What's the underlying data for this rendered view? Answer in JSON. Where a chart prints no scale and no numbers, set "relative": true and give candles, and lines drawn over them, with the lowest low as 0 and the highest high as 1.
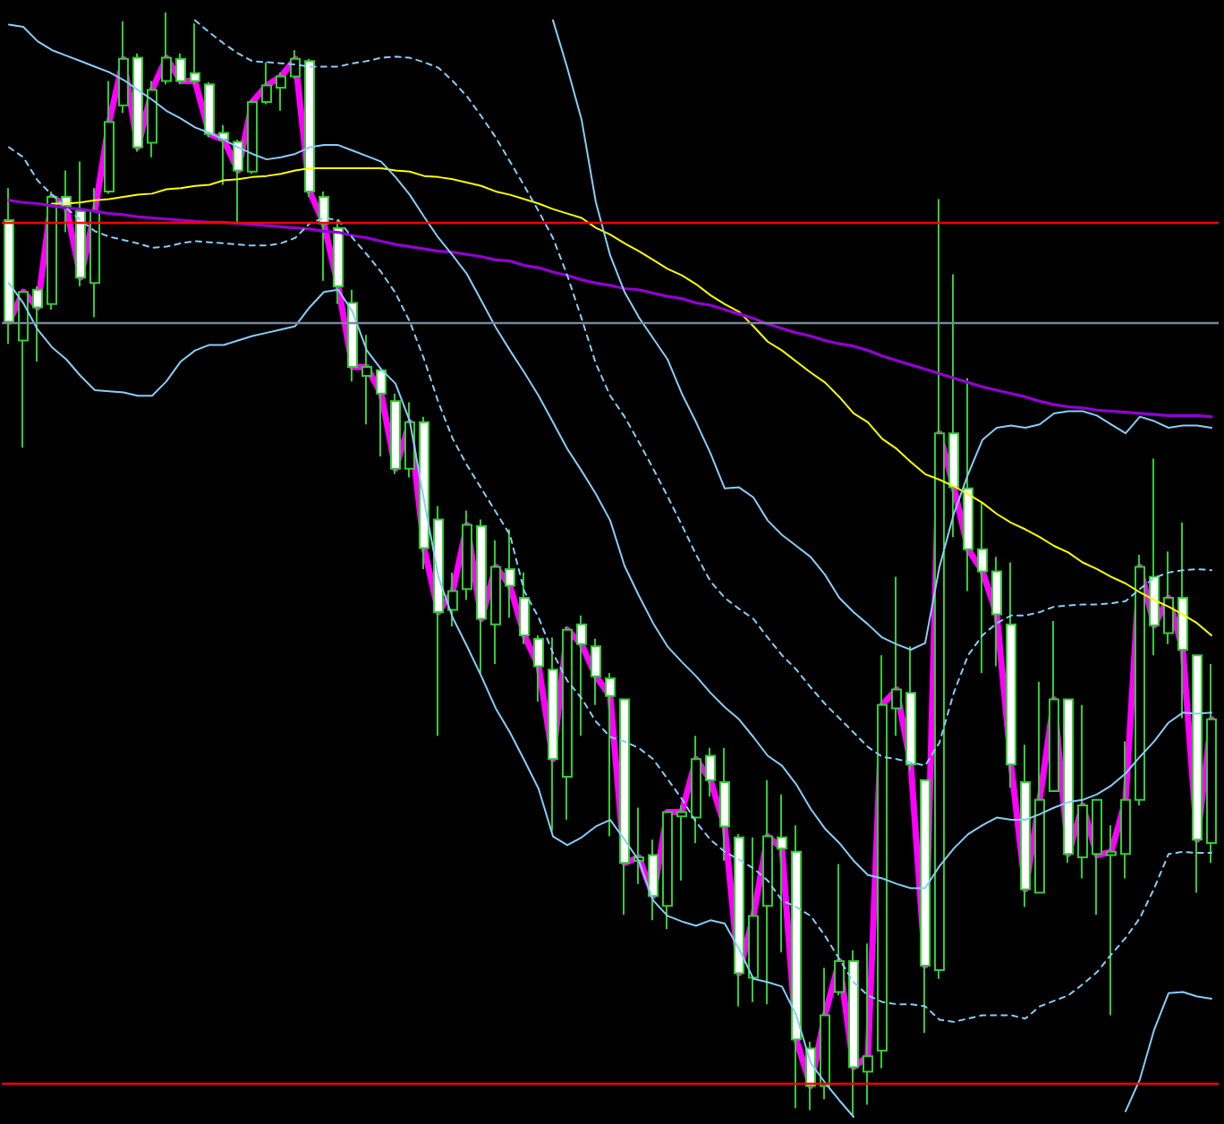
{
  "chart_data": {
    "type": "candlestick",
    "relative": true,
    "tick_labels": false,
    "grid": false,
    "marker": "none",
    "categories": [
      null,
      null,
      null,
      null,
      null,
      null,
      null,
      null,
      null,
      null,
      null,
      null,
      null,
      null,
      null,
      null,
      null,
      null,
      null,
      null,
      null,
      null,
      null,
      null,
      null,
      null,
      null,
      null,
      null,
      null,
      null,
      null,
      null,
      null,
      null,
      null,
      null,
      null,
      null,
      null,
      null,
      null,
      null,
      null,
      null,
      null,
      null,
      null,
      null,
      null,
      null,
      null,
      null,
      null,
      null,
      null,
      null,
      null,
      null,
      null,
      null,
      null,
      null,
      null,
      null,
      null,
      null,
      null,
      null,
      null,
      null,
      null,
      null,
      null,
      null,
      null,
      null,
      null,
      null,
      null,
      null,
      null,
      null,
      null,
      null
    ],
    "series": [
      {
        "color": "#32cd32",
        "colors": [
          "#ffffff",
          "#000000",
          "#ffffff",
          "#000000",
          "#ffffff",
          "#ffffff",
          "#000000",
          "#000000",
          "#000000",
          "#ffffff",
          "#000000",
          "#000000",
          "#ffffff",
          "#ffffff",
          "#ffffff",
          "#ffffff",
          "#ffffff",
          "#000000",
          "#000000",
          "#000000",
          "#000000",
          "#ffffff",
          "#ffffff",
          "#ffffff",
          "#ffffff",
          "#000000",
          "#ffffff",
          "#ffffff",
          "#000000",
          "#ffffff",
          "#ffffff",
          "#000000",
          "#000000",
          "#ffffff",
          "#000000",
          "#ffffff",
          "#ffffff",
          "#ffffff",
          "#ffffff",
          "#000000",
          "#ffffff",
          "#ffffff",
          "#ffffff",
          "#ffffff",
          "#000000",
          "#ffffff",
          "#000000",
          "#000000",
          "#000000",
          "#ffffff",
          "#ffffff",
          "#ffffff",
          "#000000",
          "#000000",
          "#ffffff",
          "#ffffff",
          "#ffffff",
          "#000000",
          "#000000",
          "#ffffff",
          "#000000",
          "#000000",
          "#000000",
          "#ffffff",
          "#ffffff",
          "#000000",
          "#ffffff",
          "#ffffff",
          "#ffffff",
          "#ffffff",
          "#ffffff",
          "#ffffff",
          "#000000",
          "#000000",
          "#ffffff",
          "#000000",
          "#000000",
          "#000000",
          "#000000",
          "#000000",
          "#ffffff",
          "#000000",
          "#ffffff",
          "#ffffff",
          "#000000"
        ],
        "ohlc": [
          [
            0.812,
            0.841,
            0.7,
            0.72
          ],
          [
            0.703,
            0.747,
            0.606,
            0.747
          ],
          [
            0.749,
            0.752,
            0.684,
            0.733
          ],
          [
            0.736,
            0.838,
            0.731,
            0.833
          ],
          [
            0.833,
            0.857,
            0.801,
            0.825
          ],
          [
            0.82,
            0.865,
            0.752,
            0.76
          ],
          [
            0.755,
            0.841,
            0.724,
            0.82
          ],
          [
            0.838,
            0.938,
            0.836,
            0.901
          ],
          [
            0.916,
            0.992,
            0.909,
            0.958
          ],
          [
            0.959,
            0.963,
            0.874,
            0.878
          ],
          [
            0.882,
            0.938,
            0.869,
            0.93
          ],
          [
            0.938,
            1,
            0.935,
            0.959
          ],
          [
            0.958,
            0.963,
            0.935,
            0.938
          ],
          [
            0.945,
            0.99,
            0.935,
            0.938
          ],
          [
            0.935,
            0.937,
            0.887,
            0.89
          ],
          [
            0.891,
            0.898,
            0.844,
            0.885
          ],
          [
            0.883,
            0.885,
            0.809,
            0.857
          ],
          [
            0.856,
            0.921,
            0.854,
            0.919
          ],
          [
            0.919,
            0.955,
            0.917,
            0.934
          ],
          [
            0.932,
            0.946,
            0.911,
            0.942
          ],
          [
            0.942,
            0.966,
            0.94,
            0.958
          ],
          [
            0.956,
            0.958,
            0.833,
            0.838
          ],
          [
            0.833,
            0.838,
            0.757,
            0.809
          ],
          [
            0.805,
            0.812,
            0.736,
            0.752
          ],
          [
            0.737,
            0.749,
            0.666,
            0.679
          ],
          [
            0.671,
            0.708,
            0.627,
            0.679
          ],
          [
            0.676,
            0.677,
            0.598,
            0.655
          ],
          [
            0.648,
            0.655,
            0.582,
            0.587
          ],
          [
            0.587,
            0.647,
            0.579,
            0.629
          ],
          [
            0.629,
            0.634,
            0.496,
            0.515
          ],
          [
            0.541,
            0.553,
            0.345,
            0.457
          ],
          [
            0.459,
            0.493,
            0.444,
            0.476
          ],
          [
            0.478,
            0.549,
            0.468,
            0.536
          ],
          [
            0.535,
            0.541,
            0.402,
            0.451
          ],
          [
            0.446,
            0.522,
            0.41,
            0.498
          ],
          [
            0.496,
            0.532,
            0.452,
            0.481
          ],
          [
            0.47,
            0.493,
            0.428,
            0.436
          ],
          [
            0.433,
            0.436,
            0.376,
            0.408
          ],
          [
            0.405,
            0.434,
            0.259,
            0.324
          ],
          [
            0.308,
            0.444,
            0.269,
            0.441
          ],
          [
            0.446,
            0.454,
            0.345,
            0.428
          ],
          [
            0.426,
            0.433,
            0.373,
            0.399
          ],
          [
            0.397,
            0.402,
            0.254,
            0.381
          ],
          [
            0.378,
            0.379,
            0.183,
            0.23
          ],
          [
            0.232,
            0.28,
            0.211,
            0.235
          ],
          [
            0.237,
            0.251,
            0.178,
            0.2
          ],
          [
            0.191,
            0.276,
            0.17,
            0.276
          ],
          [
            0.272,
            0.282,
            0.214,
            0.276
          ],
          [
            0.271,
            0.345,
            0.248,
            0.324
          ],
          [
            0.327,
            0.334,
            0.29,
            0.305
          ],
          [
            0.303,
            0.334,
            0.232,
            0.263
          ],
          [
            0.253,
            0.256,
            0.1,
            0.13
          ],
          [
            0.126,
            0.253,
            0.104,
            0.182
          ],
          [
            0.191,
            0.305,
            0.102,
            0.254
          ],
          [
            0.253,
            0.292,
            0.149,
            0.243
          ],
          [
            0.24,
            0.264,
            0.008,
            0.07
          ],
          [
            0.062,
            0.068,
            0.006,
            0.028
          ],
          [
            0.028,
            0.135,
            0.016,
            0.092
          ],
          [
            0.113,
            0.229,
            0.11,
            0.141
          ],
          [
            0.141,
            0.151,
            0,
            0.045
          ],
          [
            0.041,
            0.157,
            0.011,
            0.055
          ],
          [
            0.06,
            0.418,
            0.044,
            0.373
          ],
          [
            0.37,
            0.489,
            0.345,
            0.387
          ],
          [
            0.384,
            0.426,
            0.314,
            0.319
          ],
          [
            0.305,
            0.305,
            0.076,
            0.137
          ],
          [
            0.133,
            0.831,
            0.125,
            0.619
          ],
          [
            0.619,
            0.763,
            0.525,
            0.57
          ],
          [
            0.569,
            0.669,
            0.476,
            0.514
          ],
          [
            0.514,
            0.556,
            0.402,
            0.494
          ],
          [
            0.494,
            0.507,
            0.408,
            0.455
          ],
          [
            0.446,
            0.502,
            0.298,
            0.319
          ],
          [
            0.303,
            0.337,
            0.19,
            0.206
          ],
          [
            0.203,
            0.394,
            0.203,
            0.287
          ],
          [
            0.295,
            0.449,
            0.295,
            0.378
          ],
          [
            0.378,
            0.378,
            0.23,
            0.238
          ],
          [
            0.235,
            0.373,
            0.216,
            0.282
          ],
          [
            0.238,
            0.287,
            0.183,
            0.287
          ],
          [
            0.237,
            0.264,
            0.092,
            0.24
          ],
          [
            0.238,
            0.34,
            0.216,
            0.287
          ],
          [
            0.287,
            0.509,
            0.282,
            0.498
          ],
          [
            0.489,
            0.596,
            0.418,
            0.445
          ],
          [
            0.438,
            0.512,
            0.428,
            0.47
          ],
          [
            0.47,
            0.538,
            0.361,
            0.423
          ],
          [
            0.418,
            0.418,
            0.203,
            0.251
          ],
          [
            0.248,
            0.41,
            0.23,
            0.36
          ]
        ]
      },
      {
        "type": "line",
        "color": "#ff00ff",
        "values": [
          0.72,
          0.747,
          0.733,
          0.833,
          0.825,
          0.76,
          0.82,
          0.901,
          0.958,
          0.878,
          0.93,
          0.959,
          0.938,
          0.938,
          0.89,
          0.885,
          0.857,
          0.919,
          0.934,
          0.942,
          0.958,
          0.838,
          0.809,
          0.752,
          0.679,
          0.679,
          0.655,
          0.587,
          0.629,
          0.515,
          0.457,
          0.476,
          0.536,
          0.451,
          0.498,
          0.481,
          0.436,
          0.408,
          0.324,
          0.441,
          0.428,
          0.399,
          0.381,
          0.23,
          0.235,
          0.2,
          0.276,
          0.276,
          0.324,
          0.305,
          0.263,
          0.13,
          0.182,
          0.254,
          0.243,
          0.07,
          0.028,
          0.092,
          0.141,
          0.045,
          0.055,
          0.373,
          0.387,
          0.319,
          0.137,
          0.619,
          0.57,
          0.514,
          0.494,
          0.455,
          0.319,
          0.206,
          0.287,
          0.378,
          0.238,
          0.282,
          0.237,
          0.24,
          0.287,
          0.498,
          0.445,
          0.47,
          0.423,
          0.251,
          0.36
        ]
      },
      {
        "type": "line",
        "color": "#ffff00",
        "values": [
          null,
          null,
          null,
          0.827,
          0.827,
          0.828,
          0.83,
          0.831,
          0.833,
          0.835,
          0.836,
          0.84,
          0.841,
          0.843,
          0.844,
          0.848,
          0.849,
          0.851,
          0.852,
          0.854,
          0.857,
          0.859,
          0.859,
          0.859,
          0.859,
          0.859,
          0.859,
          0.857,
          0.856,
          0.852,
          0.851,
          0.849,
          0.846,
          0.843,
          0.838,
          0.835,
          0.831,
          0.827,
          0.822,
          0.818,
          0.814,
          0.805,
          0.799,
          0.791,
          0.784,
          0.776,
          0.768,
          0.762,
          0.754,
          0.744,
          0.736,
          0.729,
          0.716,
          0.702,
          0.694,
          0.684,
          0.674,
          0.665,
          0.652,
          0.637,
          0.629,
          0.614,
          0.605,
          0.593,
          0.582,
          0.577,
          0.571,
          0.564,
          0.556,
          0.546,
          0.538,
          0.532,
          0.525,
          0.517,
          0.511,
          0.502,
          0.496,
          0.489,
          0.483,
          0.475,
          0.468,
          0.462,
          0.455,
          0.447,
          0.436
        ]
      },
      {
        "type": "line",
        "color": "#9400d3",
        "values": [
          0.83,
          0.828,
          0.827,
          0.825,
          0.823,
          0.822,
          0.82,
          0.818,
          0.817,
          0.815,
          0.814,
          0.813,
          0.812,
          0.811,
          0.81,
          0.81,
          0.809,
          0.808,
          0.807,
          0.806,
          0.805,
          0.804,
          0.802,
          0.801,
          0.798,
          0.796,
          0.793,
          0.79,
          0.788,
          0.786,
          0.784,
          0.783,
          0.781,
          0.779,
          0.776,
          0.775,
          0.771,
          0.769,
          0.765,
          0.762,
          0.758,
          0.755,
          0.753,
          0.75,
          0.749,
          0.746,
          0.743,
          0.741,
          0.737,
          0.735,
          0.731,
          0.727,
          0.723,
          0.718,
          0.714,
          0.71,
          0.707,
          0.703,
          0.7,
          0.698,
          0.694,
          0.689,
          0.685,
          0.681,
          0.677,
          0.673,
          0.669,
          0.665,
          0.661,
          0.658,
          0.655,
          0.652,
          0.648,
          0.645,
          0.643,
          0.642,
          0.64,
          0.639,
          0.638,
          0.637,
          0.636,
          0.635,
          0.635,
          0.635,
          0.634
        ]
      },
      {
        "type": "line",
        "color": "#87cefa",
        "line_style": "solid",
        "values": [
          null,
          null,
          null,
          null,
          null,
          null,
          null,
          null,
          null,
          null,
          null,
          null,
          null,
          null,
          null,
          null,
          null,
          null,
          null,
          null,
          null,
          null,
          null,
          null,
          null,
          null,
          null,
          null,
          null,
          null,
          null,
          null,
          null,
          null,
          null,
          null,
          null,
          null,
          0.993,
          0.95,
          0.903,
          0.828,
          0.78,
          0.747,
          0.724,
          0.705,
          0.686,
          0.655,
          0.629,
          0.601,
          0.569,
          0.57,
          0.561,
          0.54,
          0.527,
          0.517,
          0.507,
          0.491,
          0.47,
          0.457,
          0.446,
          0.434,
          0.428,
          0.423,
          0.429,
          0.498,
          0.546,
          0.582,
          0.613,
          0.624,
          0.626,
          0.624,
          0.627,
          0.637,
          0.639,
          0.639,
          0.635,
          0.627,
          0.619,
          0.634,
          0.63,
          0.624,
          0.626,
          0.626,
          0.624
        ]
      },
      {
        "type": "line",
        "color": "#87cefa",
        "line_style": "dashed",
        "values": [
          null,
          null,
          null,
          null,
          null,
          null,
          null,
          null,
          null,
          null,
          null,
          null,
          null,
          0.993,
          0.982,
          0.972,
          0.963,
          0.956,
          0.955,
          0.954,
          0.953,
          0.951,
          0.951,
          0.951,
          0.954,
          0.956,
          0.959,
          0.96,
          0.959,
          0.955,
          0.95,
          0.938,
          0.924,
          0.906,
          0.887,
          0.865,
          0.843,
          0.82,
          0.796,
          0.762,
          0.723,
          0.682,
          0.653,
          0.634,
          0.611,
          0.587,
          0.562,
          0.536,
          0.509,
          0.485,
          0.47,
          0.46,
          0.451,
          0.434,
          0.418,
          0.405,
          0.389,
          0.374,
          0.361,
          0.348,
          0.335,
          0.326,
          0.324,
          0.321,
          0.318,
          0.339,
          0.384,
          0.418,
          0.436,
          0.447,
          0.454,
          0.454,
          0.457,
          0.462,
          0.463,
          0.464,
          0.464,
          0.465,
          0.467,
          0.478,
          0.488,
          0.493,
          0.495,
          0.496,
          0.495
        ]
      },
      {
        "type": "line",
        "color": "#87cefa",
        "line_style": "solid",
        "values": [
          0.989,
          0.987,
          0.974,
          0.966,
          0.961,
          0.956,
          0.951,
          0.946,
          0.939,
          0.93,
          0.921,
          0.911,
          0.904,
          0.896,
          0.891,
          0.885,
          0.878,
          0.872,
          0.867,
          0.869,
          0.872,
          0.878,
          0.88,
          0.88,
          0.875,
          0.87,
          0.865,
          0.851,
          0.835,
          0.815,
          0.796,
          0.78,
          0.763,
          0.739,
          0.715,
          0.694,
          0.674,
          0.653,
          0.629,
          0.605,
          0.585,
          0.564,
          0.54,
          0.499,
          0.472,
          0.447,
          0.426,
          0.412,
          0.399,
          0.384,
          0.371,
          0.36,
          0.344,
          0.327,
          0.318,
          0.301,
          0.279,
          0.261,
          0.248,
          0.232,
          0.219,
          0.216,
          0.211,
          0.207,
          0.207,
          0.227,
          0.243,
          0.256,
          0.264,
          0.271,
          0.269,
          0.269,
          0.274,
          0.28,
          0.285,
          0.287,
          0.292,
          0.3,
          0.311,
          0.326,
          0.34,
          0.357,
          0.366,
          0.365,
          0.366
        ]
      },
      {
        "type": "line",
        "color": "#87cefa",
        "line_style": "dashed",
        "values": [
          0.878,
          0.869,
          0.848,
          0.835,
          0.823,
          0.812,
          0.802,
          0.797,
          0.794,
          0.791,
          0.787,
          0.788,
          0.791,
          0.793,
          0.792,
          0.791,
          0.79,
          0.789,
          0.789,
          0.791,
          0.796,
          0.809,
          0.814,
          0.812,
          0.796,
          0.781,
          0.765,
          0.746,
          0.72,
          0.686,
          0.647,
          0.614,
          0.59,
          0.569,
          0.548,
          0.527,
          0.476,
          0.452,
          0.42,
          0.395,
          0.379,
          0.358,
          0.344,
          0.34,
          0.334,
          0.324,
          0.306,
          0.288,
          0.267,
          0.251,
          0.24,
          0.233,
          0.225,
          0.214,
          0.196,
          0.19,
          0.182,
          0.164,
          0.143,
          0.122,
          0.11,
          0.104,
          0.102,
          0.102,
          0.1,
          0.088,
          0.086,
          0.089,
          0.092,
          0.092,
          0.092,
          0.089,
          0.1,
          0.105,
          0.11,
          0.12,
          0.131,
          0.147,
          0.162,
          0.18,
          0.207,
          0.238,
          0.24,
          0.239,
          0.239
        ]
      },
      {
        "type": "line",
        "color": "#87cefa",
        "line_style": "solid",
        "values": [
          0.755,
          0.737,
          0.713,
          0.697,
          0.686,
          0.671,
          0.658,
          0.657,
          0.656,
          0.653,
          0.653,
          0.666,
          0.684,
          0.694,
          0.699,
          0.699,
          0.703,
          0.707,
          0.71,
          0.713,
          0.716,
          0.733,
          0.747,
          0.749,
          0.729,
          0.694,
          0.677,
          0.664,
          0.63,
          0.558,
          0.489,
          0.452,
          0.426,
          0.399,
          0.37,
          0.348,
          0.323,
          0.297,
          0.254,
          0.246,
          0.253,
          0.263,
          0.269,
          0.251,
          0.232,
          0.196,
          0.182,
          0.177,
          0.173,
          0.178,
          0.175,
          0.152,
          0.125,
          0.122,
          0.118,
          0.092,
          0.049,
          0.031,
          0.015,
          0,
          null,
          null,
          null,
          null,
          null,
          null,
          null,
          null,
          null,
          null,
          null,
          null,
          null,
          null,
          null,
          null,
          null,
          null,
          0.005,
          0.034,
          0.079,
          0.112,
          0.113,
          0.109,
          0.107
        ]
      }
    ],
    "ref_lines": [
      {
        "axis": "y",
        "value": 0.806,
        "color": "#ff0000"
      },
      {
        "axis": "y",
        "value": 0.029,
        "color": "#ff0000"
      },
      {
        "axis": "y",
        "value": 0.719,
        "color": "#778899"
      }
    ]
  }
}
